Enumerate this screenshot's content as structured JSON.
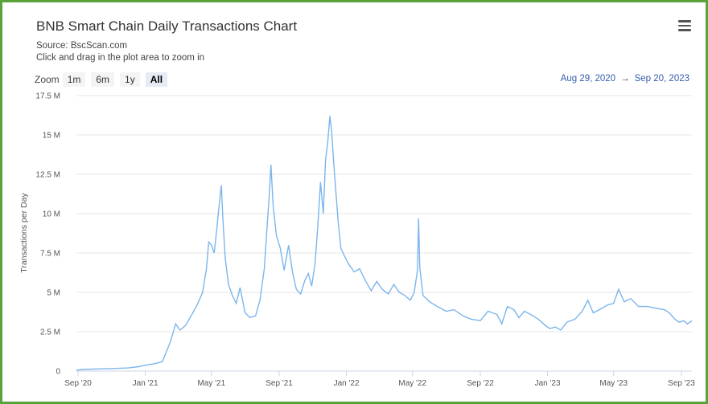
{
  "header": {
    "title": "BNB Smart Chain Daily Transactions Chart",
    "source": "Source: BscScan.com",
    "hint": "Click and drag in the plot area to zoom in"
  },
  "zoom": {
    "label": "Zoom",
    "buttons": [
      "1m",
      "6m",
      "1y",
      "All"
    ],
    "active": "All"
  },
  "range": {
    "from": "Aug 29, 2020",
    "arrow": "→",
    "to": "Sep 20, 2023"
  },
  "chart_data": {
    "type": "line",
    "ylabel": "Transactions per Day",
    "ylim": [
      0,
      17500000
    ],
    "yticks": [
      0,
      2500000,
      5000000,
      7500000,
      10000000,
      12500000,
      15000000,
      17500000
    ],
    "ytick_labels": [
      "0",
      "2.5 M",
      "5 M",
      "7.5 M",
      "10 M",
      "12.5 M",
      "15 M",
      "17.5 M"
    ],
    "xticks": [
      "2020-09-01",
      "2021-01-01",
      "2021-05-01",
      "2021-09-01",
      "2022-01-01",
      "2022-05-01",
      "2022-09-01",
      "2023-01-01",
      "2023-05-01",
      "2023-09-01"
    ],
    "xtick_labels": [
      "Sep '20",
      "Jan '21",
      "May '21",
      "Sep '21",
      "Jan '22",
      "May '22",
      "Sep '22",
      "Jan '23",
      "May '23",
      "Sep '23"
    ],
    "xlim": [
      "2020-08-29",
      "2023-09-20"
    ],
    "grid": true,
    "line_color": "#7cb5ec",
    "series": [
      {
        "points": [
          [
            "2020-08-29",
            50000
          ],
          [
            "2020-09-10",
            100000
          ],
          [
            "2020-10-01",
            130000
          ],
          [
            "2020-11-01",
            160000
          ],
          [
            "2020-12-01",
            200000
          ],
          [
            "2020-12-20",
            280000
          ],
          [
            "2021-01-05",
            400000
          ],
          [
            "2021-01-20",
            480000
          ],
          [
            "2021-02-01",
            600000
          ],
          [
            "2021-02-08",
            1200000
          ],
          [
            "2021-02-15",
            1800000
          ],
          [
            "2021-02-20",
            2400000
          ],
          [
            "2021-02-25",
            3000000
          ],
          [
            "2021-03-05",
            2600000
          ],
          [
            "2021-03-15",
            2900000
          ],
          [
            "2021-03-25",
            3500000
          ],
          [
            "2021-04-05",
            4200000
          ],
          [
            "2021-04-15",
            5000000
          ],
          [
            "2021-04-22",
            6500000
          ],
          [
            "2021-04-26",
            8200000
          ],
          [
            "2021-05-01",
            8000000
          ],
          [
            "2021-05-06",
            7500000
          ],
          [
            "2021-05-10",
            8800000
          ],
          [
            "2021-05-14",
            10200000
          ],
          [
            "2021-05-19",
            11800000
          ],
          [
            "2021-05-22",
            9500000
          ],
          [
            "2021-05-26",
            7200000
          ],
          [
            "2021-06-01",
            5500000
          ],
          [
            "2021-06-08",
            4800000
          ],
          [
            "2021-06-15",
            4300000
          ],
          [
            "2021-06-22",
            5300000
          ],
          [
            "2021-07-01",
            3700000
          ],
          [
            "2021-07-10",
            3400000
          ],
          [
            "2021-07-20",
            3500000
          ],
          [
            "2021-07-28",
            4500000
          ],
          [
            "2021-08-05",
            6500000
          ],
          [
            "2021-08-10",
            9200000
          ],
          [
            "2021-08-14",
            11200000
          ],
          [
            "2021-08-17",
            13100000
          ],
          [
            "2021-08-21",
            10500000
          ],
          [
            "2021-08-27",
            8600000
          ],
          [
            "2021-09-03",
            7800000
          ],
          [
            "2021-09-10",
            6400000
          ],
          [
            "2021-09-18",
            8000000
          ],
          [
            "2021-09-25",
            6300000
          ],
          [
            "2021-10-02",
            5200000
          ],
          [
            "2021-10-10",
            4900000
          ],
          [
            "2021-10-18",
            5800000
          ],
          [
            "2021-10-24",
            6200000
          ],
          [
            "2021-10-30",
            5400000
          ],
          [
            "2021-11-05",
            6800000
          ],
          [
            "2021-11-10",
            9200000
          ],
          [
            "2021-11-15",
            12000000
          ],
          [
            "2021-11-20",
            10000000
          ],
          [
            "2021-11-24",
            13400000
          ],
          [
            "2021-11-28",
            14500000
          ],
          [
            "2021-12-02",
            16200000
          ],
          [
            "2021-12-05",
            15300000
          ],
          [
            "2021-12-09",
            13200000
          ],
          [
            "2021-12-13",
            11300000
          ],
          [
            "2021-12-17",
            9500000
          ],
          [
            "2021-12-22",
            7800000
          ],
          [
            "2021-12-27",
            7400000
          ],
          [
            "2022-01-05",
            6800000
          ],
          [
            "2022-01-15",
            6300000
          ],
          [
            "2022-01-25",
            6500000
          ],
          [
            "2022-02-05",
            5700000
          ],
          [
            "2022-02-15",
            5100000
          ],
          [
            "2022-02-25",
            5700000
          ],
          [
            "2022-03-07",
            5200000
          ],
          [
            "2022-03-18",
            4900000
          ],
          [
            "2022-03-28",
            5500000
          ],
          [
            "2022-04-07",
            5000000
          ],
          [
            "2022-04-17",
            4800000
          ],
          [
            "2022-04-27",
            4500000
          ],
          [
            "2022-05-04",
            5000000
          ],
          [
            "2022-05-10",
            6400000
          ],
          [
            "2022-05-12",
            9700000
          ],
          [
            "2022-05-14",
            6600000
          ],
          [
            "2022-05-20",
            4800000
          ],
          [
            "2022-06-01",
            4400000
          ],
          [
            "2022-06-15",
            4100000
          ],
          [
            "2022-07-01",
            3800000
          ],
          [
            "2022-07-15",
            3900000
          ],
          [
            "2022-08-01",
            3500000
          ],
          [
            "2022-08-15",
            3300000
          ],
          [
            "2022-09-01",
            3200000
          ],
          [
            "2022-09-15",
            3800000
          ],
          [
            "2022-10-01",
            3600000
          ],
          [
            "2022-10-10",
            3000000
          ],
          [
            "2022-10-20",
            4100000
          ],
          [
            "2022-11-01",
            3900000
          ],
          [
            "2022-11-10",
            3400000
          ],
          [
            "2022-11-20",
            3800000
          ],
          [
            "2022-12-01",
            3600000
          ],
          [
            "2022-12-15",
            3300000
          ],
          [
            "2022-12-28",
            2900000
          ],
          [
            "2023-01-05",
            2700000
          ],
          [
            "2023-01-15",
            2800000
          ],
          [
            "2023-01-25",
            2600000
          ],
          [
            "2023-02-05",
            3100000
          ],
          [
            "2023-02-20",
            3300000
          ],
          [
            "2023-03-05",
            3800000
          ],
          [
            "2023-03-15",
            4500000
          ],
          [
            "2023-03-25",
            3700000
          ],
          [
            "2023-04-05",
            3900000
          ],
          [
            "2023-04-20",
            4200000
          ],
          [
            "2023-05-01",
            4300000
          ],
          [
            "2023-05-10",
            5200000
          ],
          [
            "2023-05-20",
            4400000
          ],
          [
            "2023-06-01",
            4600000
          ],
          [
            "2023-06-15",
            4100000
          ],
          [
            "2023-07-01",
            4100000
          ],
          [
            "2023-07-15",
            4000000
          ],
          [
            "2023-08-01",
            3900000
          ],
          [
            "2023-08-10",
            3700000
          ],
          [
            "2023-08-20",
            3300000
          ],
          [
            "2023-08-28",
            3100000
          ],
          [
            "2023-09-05",
            3200000
          ],
          [
            "2023-09-12",
            3000000
          ],
          [
            "2023-09-20",
            3200000
          ]
        ]
      }
    ]
  }
}
